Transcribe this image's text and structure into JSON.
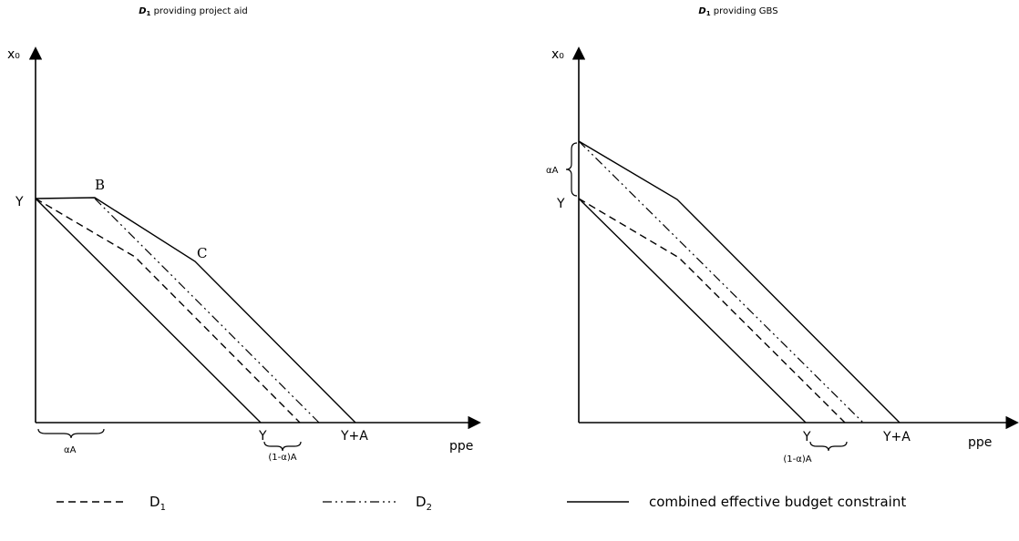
{
  "left_panel": {
    "title_main": "D",
    "title_sub": "1",
    "title_rest": " providing project aid",
    "y_axis_label": "x₀",
    "x_axis_label": "ppe",
    "label_y": "Y",
    "label_b": "B",
    "label_c": "C",
    "label_x_y": "Y",
    "label_x_ya": "Y+A",
    "label_alpha_a": "αA",
    "label_one_minus_alpha_a": "(1-α)A"
  },
  "right_panel": {
    "title_main": "D",
    "title_sub": "1",
    "title_rest": " providing GBS",
    "y_axis_label": "x₀",
    "x_axis_label": "ppe",
    "label_y": "Y",
    "label_alpha_a": "αA",
    "label_x_y": "Y",
    "label_x_ya": "Y+A",
    "label_one_minus_alpha_a": "(1-α)A"
  },
  "legend": {
    "d1_main": "D",
    "d1_sub": "1",
    "d2_main": "D",
    "d2_sub": "2",
    "combined": "combined effective budget constraint"
  }
}
